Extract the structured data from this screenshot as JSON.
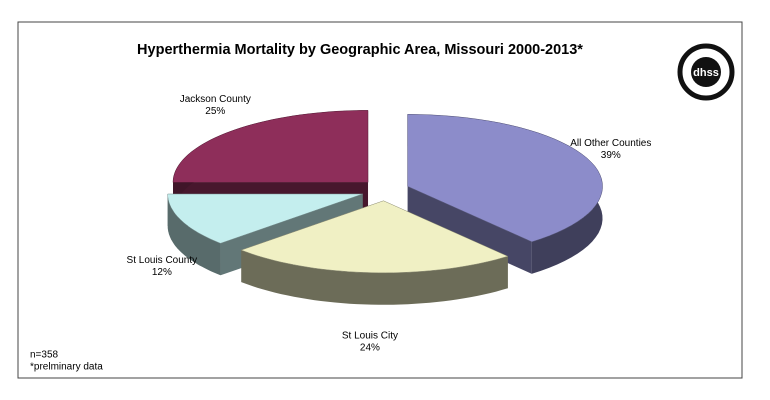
{
  "chart_data": {
    "type": "pie3d",
    "title": "Hyperthermia Mortality by Geographic Area, Missouri 2000-2013*",
    "categories": [
      "All Other Counties",
      "St Louis City",
      "St Louis County",
      "Jackson County"
    ],
    "values": [
      39,
      24,
      12,
      25
    ],
    "value_labels": [
      "39%",
      "24%",
      "12%",
      "25%"
    ],
    "colors": [
      "#8c8cca",
      "#f0f0c4",
      "#c4eeee",
      "#8e2e5a"
    ],
    "notes": [
      "n=358",
      "*prelminary data"
    ]
  },
  "logo": {
    "text": "dhss"
  }
}
